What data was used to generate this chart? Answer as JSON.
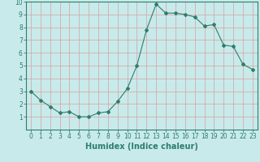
{
  "x": [
    0,
    1,
    2,
    3,
    4,
    5,
    6,
    7,
    8,
    9,
    10,
    11,
    12,
    13,
    14,
    15,
    16,
    17,
    18,
    19,
    20,
    21,
    22,
    23
  ],
  "y": [
    3.0,
    2.3,
    1.8,
    1.3,
    1.4,
    1.0,
    1.0,
    1.3,
    1.4,
    2.2,
    3.2,
    5.0,
    7.8,
    9.8,
    9.1,
    9.1,
    9.0,
    8.8,
    8.1,
    8.2,
    6.6,
    6.5,
    5.1,
    4.7
  ],
  "xlabel": "Humidex (Indice chaleur)",
  "xlim": [
    -0.5,
    23.5
  ],
  "ylim": [
    0,
    10
  ],
  "xticks": [
    0,
    1,
    2,
    3,
    4,
    5,
    6,
    7,
    8,
    9,
    10,
    11,
    12,
    13,
    14,
    15,
    16,
    17,
    18,
    19,
    20,
    21,
    22,
    23
  ],
  "yticks": [
    1,
    2,
    3,
    4,
    5,
    6,
    7,
    8,
    9,
    10
  ],
  "line_color": "#2e7d6e",
  "marker": "D",
  "marker_size": 2.0,
  "bg_color": "#c8eaea",
  "grid_color": "#d9a0a0",
  "axis_color": "#2e7d6e",
  "label_color": "#2e7d6e",
  "tick_label_color": "#2e7d6e",
  "xlabel_fontsize": 7,
  "tick_fontsize": 5.5
}
